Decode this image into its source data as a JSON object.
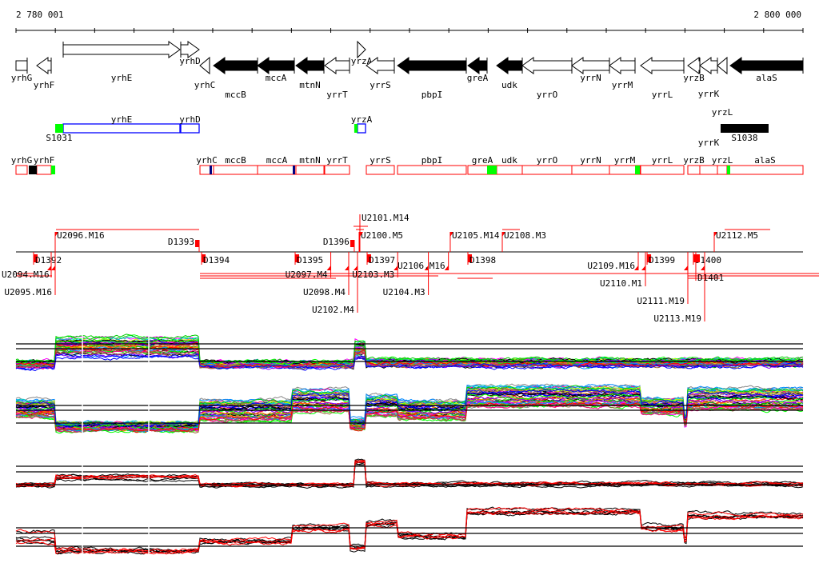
{
  "ruler": {
    "start_label": "2 780 001",
    "end_label": "2 800 000",
    "start_bp": 2780001,
    "end_bp": 2800000,
    "tick_step_bp": 1000
  },
  "genes": [
    {
      "name": "yrhG",
      "start": 2780001,
      "end": 2780285,
      "strand": "none",
      "fill": "open"
    },
    {
      "name": "yrhF",
      "start": 2780529,
      "end": 2780895,
      "strand": "-",
      "fill": "open"
    },
    {
      "name": "yrhE",
      "start": 2781200,
      "end": 2784167,
      "strand": "+",
      "fill": "open"
    },
    {
      "name": "yrhD",
      "start": 2784188,
      "end": 2784655,
      "strand": "+",
      "fill": "open"
    },
    {
      "name": "yrhC",
      "start": 2784676,
      "end": 2784919,
      "strand": "-",
      "fill": "open"
    },
    {
      "name": "mccB",
      "start": 2785021,
      "end": 2786139,
      "strand": "-",
      "fill": "filled"
    },
    {
      "name": "mccA",
      "start": 2786139,
      "end": 2787074,
      "strand": "-",
      "fill": "filled"
    },
    {
      "name": "mtnN",
      "start": 2787114,
      "end": 2787826,
      "strand": "-",
      "fill": "filled"
    },
    {
      "name": "yrrT",
      "start": 2787846,
      "end": 2788476,
      "strand": "-",
      "fill": "open"
    },
    {
      "name": "yrzA",
      "start": 2788679,
      "end": 2788883,
      "strand": "+",
      "fill": "open"
    },
    {
      "name": "yrrS",
      "start": 2788903,
      "end": 2789614,
      "strand": "-",
      "fill": "open"
    },
    {
      "name": "pbpI",
      "start": 2789696,
      "end": 2791443,
      "strand": "-",
      "fill": "filled"
    },
    {
      "name": "greA",
      "start": 2791484,
      "end": 2791972,
      "strand": "-",
      "fill": "filled"
    },
    {
      "name": "udk",
      "start": 2792216,
      "end": 2792866,
      "strand": "-",
      "fill": "filled"
    },
    {
      "name": "yrrO",
      "start": 2792866,
      "end": 2794126,
      "strand": "-",
      "fill": "open"
    },
    {
      "name": "yrrN",
      "start": 2794126,
      "end": 2795081,
      "strand": "-",
      "fill": "open"
    },
    {
      "name": "yrrM",
      "start": 2795081,
      "end": 2795732,
      "strand": "-",
      "fill": "open"
    },
    {
      "name": "yrrL",
      "start": 2795874,
      "end": 2796972,
      "strand": "-",
      "fill": "open"
    },
    {
      "name": "yrzB",
      "start": 2797073,
      "end": 2797378,
      "strand": "-",
      "fill": "open"
    },
    {
      "name": "yrrK",
      "start": 2797378,
      "end": 2797825,
      "strand": "-",
      "fill": "open"
    },
    {
      "name": "yrzL",
      "start": 2797825,
      "end": 2798069,
      "strand": "-",
      "fill": "open"
    },
    {
      "name": "alaS",
      "start": 2798150,
      "end": 2800000,
      "strand": "-",
      "fill": "filled"
    }
  ],
  "track2": {
    "boxes": [
      {
        "name": "yrhE",
        "start": 2781200,
        "end": 2784167,
        "color": "#0000ff",
        "kind": "outline"
      },
      {
        "name": "yrhD",
        "start": 2784188,
        "end": 2784655,
        "color": "#0000ff",
        "kind": "outline"
      },
      {
        "name": "yrzA",
        "start": 2788679,
        "end": 2788883,
        "color": "#0000ff",
        "kind": "outline"
      }
    ],
    "marks": [
      {
        "name": "S1031",
        "start": 2780997,
        "end": 2781200,
        "color": "#00ff00",
        "labelled": true
      },
      {
        "name": "",
        "start": 2788597,
        "end": 2788679,
        "color": "#00ff00",
        "labelled": false
      },
      {
        "name": "S1038",
        "start": 2797906,
        "end": 2799125,
        "color": "#000000",
        "labelled": true
      }
    ]
  },
  "track3": {
    "boxes": [
      {
        "name": "yrhG",
        "start": 2780001,
        "end": 2780285
      },
      {
        "name": "yrhF",
        "start": 2780529,
        "end": 2780895
      },
      {
        "name": "yrhC",
        "start": 2784676,
        "end": 2785021
      },
      {
        "name": "mccB",
        "start": 2785021,
        "end": 2786139
      },
      {
        "name": "mccA",
        "start": 2786139,
        "end": 2787114
      },
      {
        "name": "mtnN",
        "start": 2787114,
        "end": 2787826
      },
      {
        "name": "yrrT",
        "start": 2787846,
        "end": 2788476
      },
      {
        "name": "yrrS",
        "start": 2788903,
        "end": 2789614
      },
      {
        "name": "pbpI",
        "start": 2789696,
        "end": 2791443
      },
      {
        "name": "greA",
        "start": 2791484,
        "end": 2792216
      },
      {
        "name": "udk",
        "start": 2792216,
        "end": 2792866
      },
      {
        "name": "yrrO",
        "start": 2792866,
        "end": 2794126
      },
      {
        "name": "yrrN",
        "start": 2794126,
        "end": 2795081
      },
      {
        "name": "yrrM",
        "start": 2795081,
        "end": 2795854
      },
      {
        "name": "yrrL",
        "start": 2795874,
        "end": 2796972
      },
      {
        "name": "yrzB",
        "start": 2797073,
        "end": 2797378
      },
      {
        "name": "yrrK",
        "start": 2797378,
        "end": 2797825
      },
      {
        "name": "yrzL",
        "start": 2797825,
        "end": 2798069
      },
      {
        "name": "alaS",
        "start": 2798069,
        "end": 2800000
      }
    ],
    "marks": [
      {
        "start": 2780326,
        "end": 2780529,
        "color": "#000000"
      },
      {
        "start": 2780895,
        "end": 2780997,
        "color": "#00ff00"
      },
      {
        "start": 2784919,
        "end": 2784980,
        "color": "#000080"
      },
      {
        "start": 2787033,
        "end": 2787094,
        "color": "#000080"
      },
      {
        "start": 2791972,
        "end": 2792216,
        "color": "#00ff00"
      },
      {
        "start": 2795732,
        "end": 2795854,
        "color": "#00ff00"
      },
      {
        "start": 2798069,
        "end": 2798150,
        "color": "#00ff00"
      }
    ]
  },
  "transcription_units": [
    {
      "label": "U2096.M16",
      "pos": 2780997,
      "side": "above"
    },
    {
      "label": "D1393",
      "pos": 2784655,
      "side": "above"
    },
    {
      "label": "D1396",
      "pos": 2788597,
      "side": "above"
    },
    {
      "label": "U2100.M5",
      "pos": 2788720,
      "side": "above"
    },
    {
      "label": "U2101.M14",
      "pos": 2788740,
      "side": "above"
    },
    {
      "label": "U2105.M14",
      "pos": 2791036,
      "side": "above"
    },
    {
      "label": "U2108.M3",
      "pos": 2792358,
      "side": "above"
    },
    {
      "label": "U2112.M5",
      "pos": 2797744,
      "side": "above"
    },
    {
      "label": "D1392",
      "pos": 2780448,
      "side": "below"
    },
    {
      "label": "U2094.M16",
      "pos": 2780895,
      "side": "below"
    },
    {
      "label": "U2095.M16",
      "pos": 2780997,
      "side": "below"
    },
    {
      "label": "D1394",
      "pos": 2784717,
      "side": "below"
    },
    {
      "label": "D1395",
      "pos": 2787094,
      "side": "below"
    },
    {
      "label": "U2097.M4",
      "pos": 2788000,
      "side": "below"
    },
    {
      "label": "U2098.M4",
      "pos": 2788456,
      "side": "below"
    },
    {
      "label": "D1397",
      "pos": 2788923,
      "side": "below"
    },
    {
      "label": "U2102.M4",
      "pos": 2788679,
      "side": "below"
    },
    {
      "label": "U2103.M3",
      "pos": 2789700,
      "side": "below"
    },
    {
      "label": "U2104.M3",
      "pos": 2790480,
      "side": "below"
    },
    {
      "label": "U2106.M16",
      "pos": 2790990,
      "side": "below"
    },
    {
      "label": "D1398",
      "pos": 2791484,
      "side": "below"
    },
    {
      "label": "U2109.M16",
      "pos": 2795813,
      "side": "below"
    },
    {
      "label": "D1399",
      "pos": 2796038,
      "side": "below"
    },
    {
      "label": "U2110.M1",
      "pos": 2795996,
      "side": "below"
    },
    {
      "label": "D1400",
      "pos": 2797214,
      "side": "below"
    },
    {
      "label": "D1401",
      "pos": 2797276,
      "side": "below"
    },
    {
      "label": "U2111.M19",
      "pos": 2797073,
      "side": "below"
    },
    {
      "label": "U2113.M19",
      "pos": 2797500,
      "side": "below"
    }
  ],
  "chart_data": {
    "type": "line",
    "title": "",
    "xlabel": "",
    "ylabel": "",
    "xlim": [
      2780001,
      2800000
    ],
    "series_note": "segment levels (0-1 within panel) with spread across series",
    "panels": [
      {
        "name": "expression-profiles-1",
        "series_count": 45,
        "palette": "multi",
        "segments": [
          [
            2780001,
            2780997,
            0.22,
            0.15
          ],
          [
            2780997,
            2784655,
            0.55,
            0.4
          ],
          [
            2784655,
            2788597,
            0.22,
            0.12
          ],
          [
            2788597,
            2788883,
            0.5,
            0.35
          ],
          [
            2788883,
            2800000,
            0.25,
            0.15
          ]
        ]
      },
      {
        "name": "expression-profiles-2",
        "series_count": 45,
        "palette": "multi",
        "segments": [
          [
            2780001,
            2780997,
            0.52,
            0.35
          ],
          [
            2780997,
            2784655,
            0.18,
            0.15
          ],
          [
            2784655,
            2787013,
            0.49,
            0.4
          ],
          [
            2787013,
            2788476,
            0.67,
            0.45
          ],
          [
            2788476,
            2788883,
            0.22,
            0.2
          ],
          [
            2788883,
            2789696,
            0.57,
            0.4
          ],
          [
            2789696,
            2791443,
            0.49,
            0.35
          ],
          [
            2791443,
            2795854,
            0.75,
            0.4
          ],
          [
            2795854,
            2796972,
            0.57,
            0.3
          ],
          [
            2796972,
            2797073,
            0.3,
            0.2
          ],
          [
            2797073,
            2800000,
            0.7,
            0.4
          ]
        ]
      },
      {
        "name": "summary-profiles-1",
        "series_count": 8,
        "palette": "black-red",
        "segments": [
          [
            2780001,
            2780997,
            0.19,
            0.12
          ],
          [
            2780997,
            2784655,
            0.42,
            0.15
          ],
          [
            2784655,
            2788597,
            0.2,
            0.1
          ],
          [
            2788597,
            2788883,
            0.86,
            0.15
          ],
          [
            2788883,
            2800000,
            0.22,
            0.1
          ]
        ]
      },
      {
        "name": "summary-profiles-2",
        "series_count": 8,
        "palette": "black-red",
        "segments": [
          [
            2780001,
            2780997,
            0.35,
            0.3
          ],
          [
            2780997,
            2784655,
            0.1,
            0.08
          ],
          [
            2784655,
            2787013,
            0.28,
            0.1
          ],
          [
            2787013,
            2788476,
            0.54,
            0.12
          ],
          [
            2788476,
            2788883,
            0.15,
            0.1
          ],
          [
            2788883,
            2789696,
            0.62,
            0.1
          ],
          [
            2789696,
            2791443,
            0.38,
            0.1
          ],
          [
            2791443,
            2795854,
            0.85,
            0.12
          ],
          [
            2795854,
            2796972,
            0.54,
            0.1
          ],
          [
            2796972,
            2797073,
            0.3,
            0.1
          ],
          [
            2797073,
            2800000,
            0.77,
            0.12
          ]
        ]
      }
    ]
  },
  "colors": {
    "gene": "#000000",
    "feature_box": "#ff0000",
    "operon": "#0000ff",
    "accent_green": "#00ff00"
  }
}
